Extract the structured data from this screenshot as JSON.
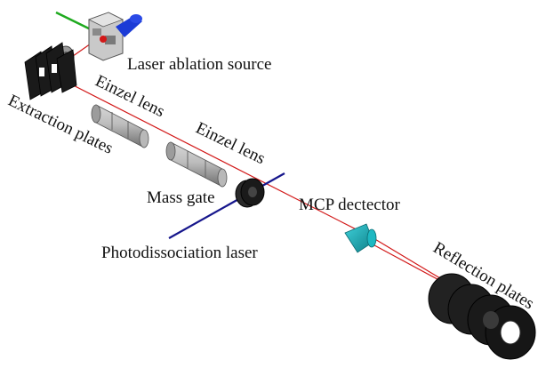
{
  "labels": {
    "laser_ablation_source": "Laser ablation source",
    "extraction_plates": "Extraction plates",
    "einzel_lens_1": "Einzel lens",
    "einzel_lens_2": "Einzel lens",
    "mass_gate": "Mass gate",
    "mcp_detector": "MCP dectector",
    "photodissociation_laser": "Photodissociation laser",
    "reflection_plates": "Reflection plates"
  },
  "colors": {
    "ion_beam": "#d21818",
    "laser_beam": "#16168c",
    "ablation_laser": "#1faa1f",
    "detector": "#15a3ad",
    "plate": "#1a1a1a",
    "lens": "#a4a4a4"
  }
}
